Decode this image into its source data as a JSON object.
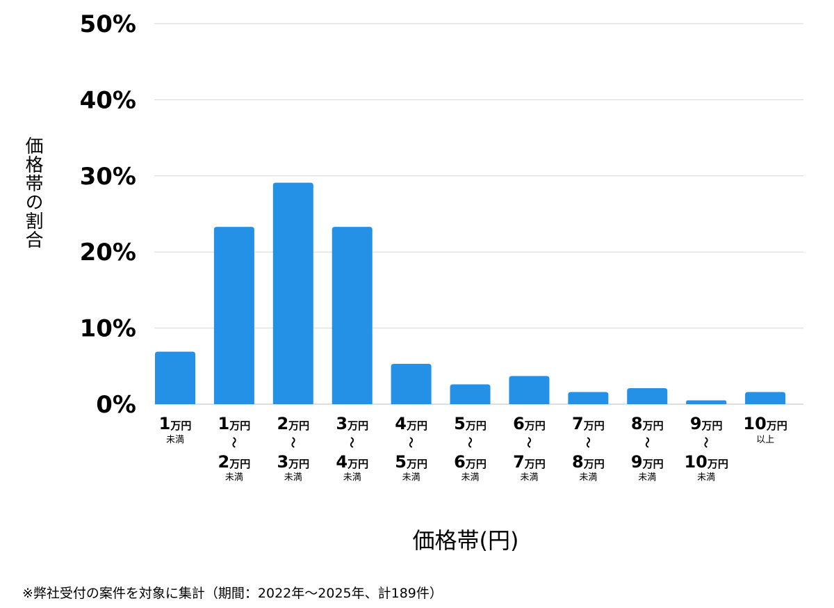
{
  "chart_data": {
    "type": "bar",
    "categories": [
      [
        "1",
        "万円",
        "",
        "",
        "",
        "未満"
      ],
      [
        "1",
        "万円",
        "〜",
        "2",
        "万円",
        "未満"
      ],
      [
        "2",
        "万円",
        "〜",
        "3",
        "万円",
        "未満"
      ],
      [
        "3",
        "万円",
        "〜",
        "4",
        "万円",
        "未満"
      ],
      [
        "4",
        "万円",
        "〜",
        "5",
        "万円",
        "未満"
      ],
      [
        "5",
        "万円",
        "〜",
        "6",
        "万円",
        "未満"
      ],
      [
        "6",
        "万円",
        "〜",
        "7",
        "万円",
        "未満"
      ],
      [
        "7",
        "万円",
        "〜",
        "8",
        "万円",
        "未満"
      ],
      [
        "8",
        "万円",
        "〜",
        "9",
        "万円",
        "未満"
      ],
      [
        "9",
        "万円",
        "〜",
        "10",
        "万円",
        "未満"
      ],
      [
        "10",
        "万円",
        "",
        "",
        "",
        "以上"
      ]
    ],
    "values": [
      6.9,
      23.3,
      29.1,
      23.3,
      5.3,
      2.6,
      3.7,
      1.6,
      2.1,
      0.5,
      1.6
    ],
    "ylim": [
      0,
      50
    ],
    "yticks": [
      "0%",
      "10%",
      "20%",
      "30%",
      "40%",
      "50%"
    ],
    "ylabel": "価格帯の割合",
    "xlabel": "価格帯(円)",
    "grid": true,
    "bar_color": "#2591e6",
    "grid_color": "#d6d6d6"
  },
  "footnote": "※弊社受付の案件を対象に集計（期間：2022年〜2025年、計189件）"
}
